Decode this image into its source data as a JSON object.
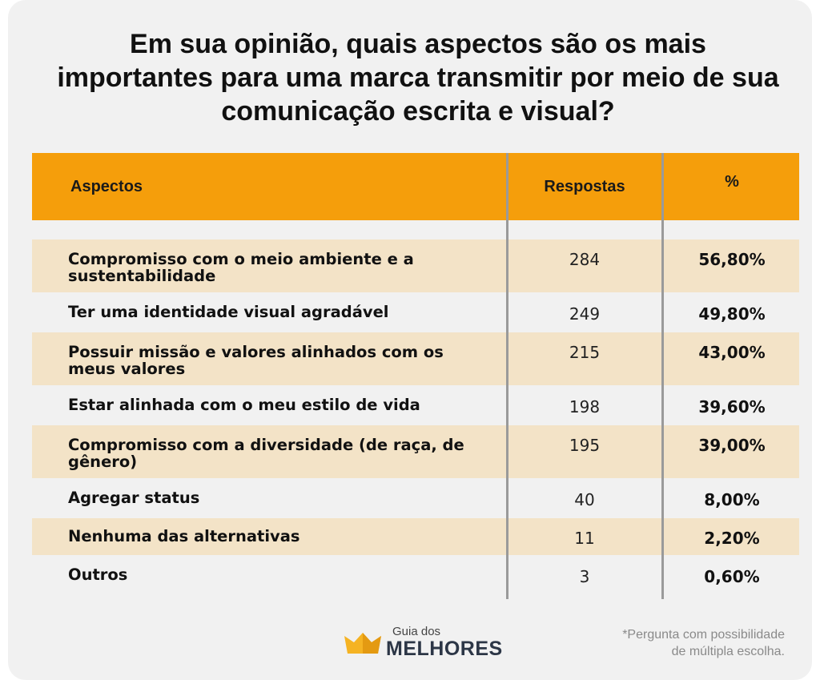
{
  "title": "Em sua opinião, quais aspectos são os mais importantes para uma marca transmitir por meio de sua comunicação escrita e visual?",
  "colors": {
    "header": "#f59e0b",
    "shaded_row": "#f3e3c7",
    "background": "#f1f1f1"
  },
  "chart_data": {
    "type": "table",
    "title": "Em sua opinião, quais aspectos são os mais importantes para uma marca transmitir por meio de sua comunicação escrita e visual?",
    "columns": [
      "Aspectos",
      "Respostas",
      "%"
    ],
    "rows": [
      {
        "aspecto": "Compromisso com o meio ambiente e a sustentabilidade",
        "respostas": "284",
        "pct": "56,80%"
      },
      {
        "aspecto": "Ter uma identidade visual agradável",
        "respostas": "249",
        "pct": "49,80%"
      },
      {
        "aspecto": "Possuir missão e valores alinhados com os meus valores",
        "respostas": "215",
        "pct": "43,00%"
      },
      {
        "aspecto": "Estar alinhada com o meu estilo de vida",
        "respostas": "198",
        "pct": "39,60%"
      },
      {
        "aspecto": "Compromisso com a diversidade (de raça, de gênero)",
        "respostas": "195",
        "pct": "39,00%"
      },
      {
        "aspecto": "Agregar status",
        "respostas": "40",
        "pct": "8,00%"
      },
      {
        "aspecto": "Nenhuma das alternativas",
        "respostas": "11",
        "pct": "2,20%"
      },
      {
        "aspecto": "Outros",
        "respostas": "3",
        "pct": "0,60%"
      }
    ]
  },
  "logo": {
    "small": "Guia dos",
    "big": "MELHORES"
  },
  "note": {
    "line1": "*Pergunta com possibilidade",
    "line2": "de múltipla escolha."
  }
}
